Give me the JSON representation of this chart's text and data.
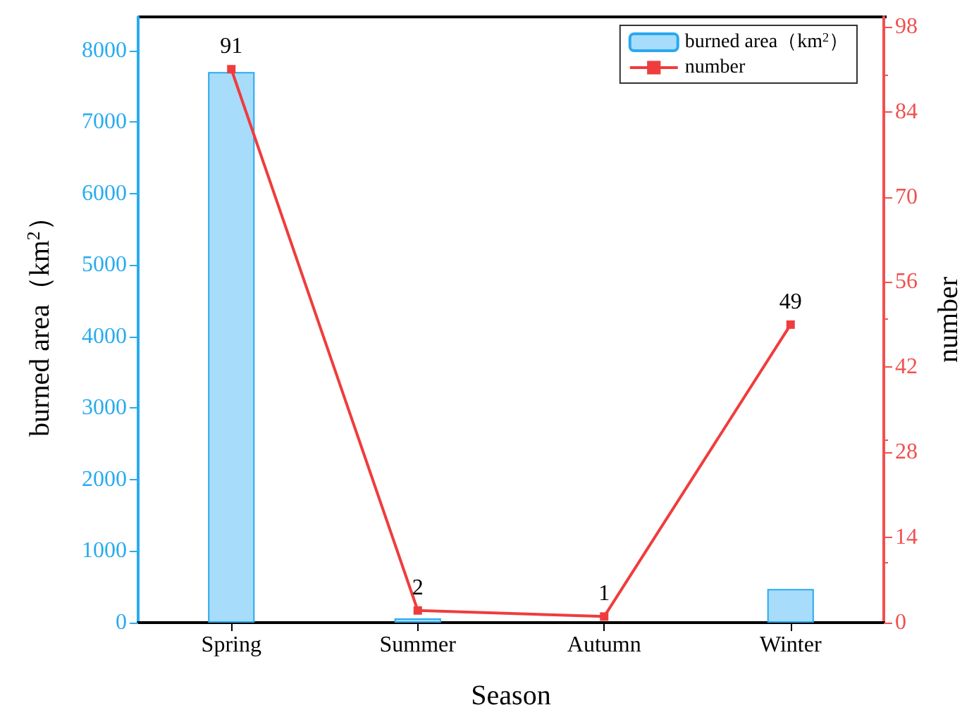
{
  "chart_data": {
    "type": "bar",
    "xlabel": "Season",
    "ylabel": "burned area（km$^{2}$）",
    "y2label": "number",
    "categories": [
      "Spring",
      "Summer",
      "Autumn",
      "Winter"
    ],
    "series": [
      {
        "name": "burned area（km$^{2}$）",
        "color": "#a8dcfb",
        "values": [
          7700,
          60,
          null,
          470
        ]
      },
      {
        "name": "number",
        "type": "line",
        "axis": "y2",
        "color": "#f03c3c",
        "values": [
          91,
          2,
          1,
          49
        ],
        "value_labels": [
          "91",
          "2",
          "1",
          "49"
        ]
      }
    ],
    "ylim": [
      0,
      8470
    ],
    "yticks": [
      0,
      1000,
      2000,
      3000,
      4000,
      5000,
      6000,
      7000,
      8000
    ],
    "y2lim": [
      0,
      99.6
    ],
    "y2ticks": [
      0,
      14,
      28,
      42,
      56,
      70,
      84,
      98
    ],
    "legend": "top right",
    "marker": "square",
    "grid": false
  }
}
